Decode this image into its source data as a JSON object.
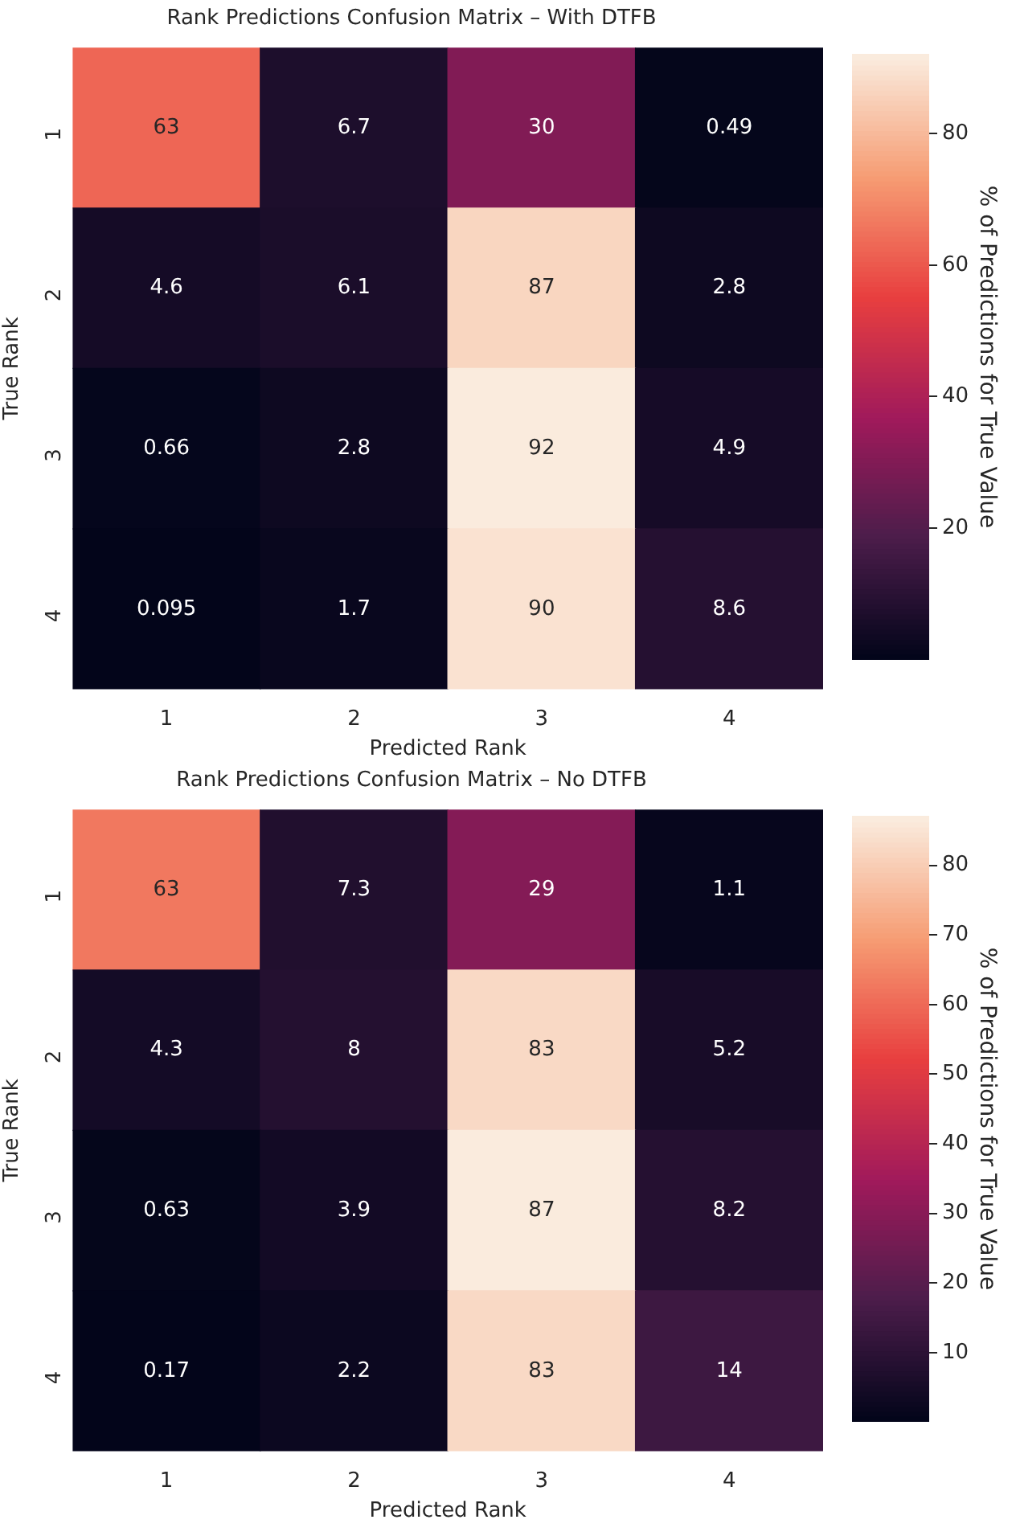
{
  "chart_data": [
    {
      "type": "heatmap",
      "title": "Rank Predictions Confusion Matrix – With DTFB",
      "xlabel": "Predicted Rank",
      "ylabel": "True Rank",
      "clabel": "% of Predictions for True Value",
      "categories": [
        "1",
        "2",
        "3",
        "4"
      ],
      "y_categories": [
        "1",
        "2",
        "3",
        "4"
      ],
      "cells": [
        [
          63,
          6.7,
          30,
          0.49
        ],
        [
          4.6,
          6.1,
          87,
          2.8
        ],
        [
          0.66,
          2.8,
          92,
          4.9
        ],
        [
          0.095,
          1.7,
          90,
          8.6
        ]
      ],
      "clim": [
        0.095,
        92
      ],
      "cticks": [
        20,
        40,
        60,
        80
      ],
      "data_labels": true
    },
    {
      "type": "heatmap",
      "title": "Rank Predictions Confusion Matrix – No DTFB",
      "xlabel": "Predicted Rank",
      "ylabel": "True Rank",
      "clabel": "% of Predictions for True Value",
      "categories": [
        "1",
        "2",
        "3",
        "4"
      ],
      "y_categories": [
        "1",
        "2",
        "3",
        "4"
      ],
      "cells": [
        [
          63,
          7.3,
          29,
          1.1
        ],
        [
          4.3,
          8,
          83,
          5.2
        ],
        [
          0.63,
          3.9,
          87,
          8.2
        ],
        [
          0.17,
          2.2,
          83,
          14
        ]
      ],
      "clim": [
        0.17,
        87
      ],
      "cticks": [
        10,
        20,
        30,
        40,
        50,
        60,
        70,
        80
      ],
      "data_labels": true
    }
  ]
}
